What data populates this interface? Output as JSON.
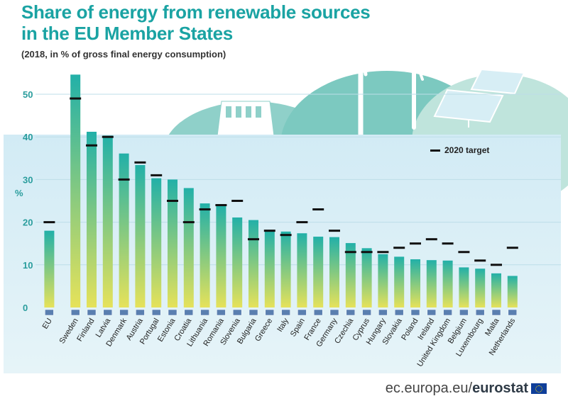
{
  "title_lines": [
    "Share of energy from renewable sources",
    "in the EU Member States"
  ],
  "subtitle": "(2018, in % of gross final energy consumption)",
  "legend_label": "2020 target",
  "footer": {
    "domain_text": "ec.europa.eu/",
    "brand_text": "eurostat"
  },
  "colors": {
    "title": "#1aa3a3",
    "panel": "#d9eef7",
    "bar_top": "#22b0a8",
    "bar_bottom": "#e6e25a",
    "axis_text": "#2a9d9d",
    "target": "#111111",
    "hills": "#8fd0c9",
    "hills_light": "#bfe4dc"
  },
  "chart_data": {
    "type": "bar",
    "ylabel": "%",
    "ylim": [
      0,
      55
    ],
    "yticks": [
      0,
      10,
      20,
      30,
      40,
      50
    ],
    "grid": true,
    "legend_position": "top-right",
    "categories": [
      "EU",
      "Sweden",
      "Finland",
      "Latvia",
      "Denmark",
      "Austria",
      "Portugal",
      "Estonia",
      "Croatia",
      "Lithuania",
      "Romania",
      "Slovenia",
      "Bulgaria",
      "Greece",
      "Italy",
      "Spain",
      "France",
      "Germany",
      "Czechia",
      "Cyprus",
      "Hungary",
      "Slovakia",
      "Poland",
      "Ireland",
      "United Kingdom",
      "Belgium",
      "Luxembourg",
      "Malta",
      "Netherlands"
    ],
    "series": [
      {
        "name": "",
        "values": [
          18.0,
          54.6,
          41.2,
          40.3,
          36.1,
          33.4,
          30.3,
          30.0,
          28.0,
          24.4,
          23.9,
          21.1,
          20.5,
          18.0,
          17.8,
          17.4,
          16.6,
          16.5,
          15.1,
          13.9,
          12.5,
          11.9,
          11.3,
          11.1,
          11.0,
          9.4,
          9.1,
          8.0,
          7.4
        ]
      },
      {
        "name": "2020 target",
        "values": [
          20,
          49,
          38,
          40,
          30,
          34,
          31,
          25,
          20,
          23,
          24,
          25,
          16,
          18,
          17,
          20,
          23,
          18,
          13,
          13,
          13,
          14,
          15,
          16,
          15,
          13,
          11,
          10,
          14
        ]
      }
    ]
  }
}
